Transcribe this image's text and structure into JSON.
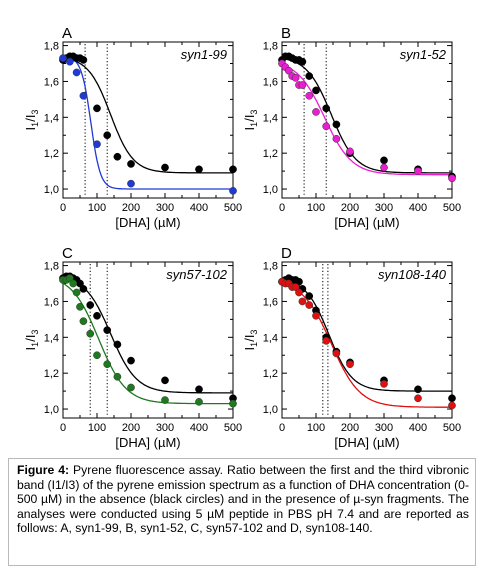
{
  "chart_data": [
    {
      "type": "scatter",
      "panel_letter": "A",
      "label": "syn1-99",
      "xlabel": "[DHA] (µM)",
      "ylabel_main": "I",
      "ylabel_sub1": "1",
      "ylabel_sub2": "3",
      "xlim": [
        0,
        500
      ],
      "ylim": [
        0.95,
        1.82
      ],
      "xticks": [
        "0",
        "100",
        "200",
        "300",
        "400",
        "500"
      ],
      "yticks": [
        "1,0",
        "1,2",
        "1,4",
        "1,6",
        "1,8"
      ],
      "vlines": [
        65,
        130
      ],
      "series": [
        {
          "color": "#000000",
          "x": [
            0,
            10,
            20,
            30,
            40,
            50,
            60,
            100,
            130,
            160,
            200,
            300,
            400,
            500
          ],
          "y": [
            1.72,
            1.73,
            1.74,
            1.74,
            1.73,
            1.73,
            1.72,
            1.45,
            1.3,
            1.18,
            1.14,
            1.12,
            1.11,
            1.11
          ],
          "fit": {
            "top": 1.74,
            "bottom": 1.09,
            "x0": 140,
            "slope": 33
          }
        },
        {
          "color": "#1f3ad6",
          "x": [
            0,
            20,
            40,
            60,
            100,
            200,
            500
          ],
          "y": [
            1.73,
            1.71,
            1.65,
            1.52,
            1.25,
            1.03,
            0.99
          ],
          "fit": {
            "top": 1.74,
            "bottom": 1.0,
            "x0": 82,
            "slope": 14
          }
        }
      ]
    },
    {
      "type": "scatter",
      "panel_letter": "B",
      "label": "syn1-52",
      "xlabel": "[DHA] (µM)",
      "ylabel_main": "I",
      "ylabel_sub1": "1",
      "ylabel_sub2": "3",
      "xlim": [
        0,
        500
      ],
      "ylim": [
        0.95,
        1.82
      ],
      "xticks": [
        "0",
        "100",
        "200",
        "300",
        "400",
        "500"
      ],
      "yticks": [
        "1,0",
        "1,2",
        "1,4",
        "1,6",
        "1,8"
      ],
      "vlines": [
        65,
        130
      ],
      "series": [
        {
          "color": "#000000",
          "x": [
            0,
            10,
            20,
            30,
            40,
            50,
            60,
            80,
            100,
            130,
            160,
            200,
            300,
            400,
            500
          ],
          "y": [
            1.72,
            1.74,
            1.74,
            1.73,
            1.72,
            1.72,
            1.71,
            1.63,
            1.55,
            1.45,
            1.36,
            1.2,
            1.16,
            1.11,
            1.07
          ],
          "fit": {
            "top": 1.74,
            "bottom": 1.09,
            "x0": 145,
            "slope": 36
          }
        },
        {
          "color": "#e81fd0",
          "x": [
            0,
            10,
            20,
            30,
            40,
            50,
            60,
            80,
            100,
            130,
            160,
            200,
            300,
            400,
            500
          ],
          "y": [
            1.7,
            1.68,
            1.66,
            1.63,
            1.62,
            1.58,
            1.58,
            1.52,
            1.43,
            1.35,
            1.28,
            1.21,
            1.12,
            1.1,
            1.06
          ],
          "fit": {
            "top": 1.72,
            "bottom": 1.08,
            "x0": 125,
            "slope": 40
          }
        }
      ]
    },
    {
      "type": "scatter",
      "panel_letter": "C",
      "label": "syn57-102",
      "xlabel": "[DHA] (µM)",
      "ylabel_main": "I",
      "ylabel_sub1": "1",
      "ylabel_sub2": "3",
      "xlim": [
        0,
        500
      ],
      "ylim": [
        0.95,
        1.82
      ],
      "xticks": [
        "0",
        "100",
        "200",
        "300",
        "400",
        "500"
      ],
      "yticks": [
        "1,0",
        "1,2",
        "1,4",
        "1,6",
        "1,8"
      ],
      "vlines": [
        80,
        130
      ],
      "series": [
        {
          "color": "#000000",
          "x": [
            0,
            10,
            20,
            30,
            40,
            50,
            60,
            80,
            100,
            130,
            160,
            200,
            300,
            400,
            500
          ],
          "y": [
            1.73,
            1.74,
            1.74,
            1.73,
            1.72,
            1.7,
            1.67,
            1.58,
            1.52,
            1.44,
            1.36,
            1.27,
            1.16,
            1.11,
            1.06
          ],
          "fit": {
            "top": 1.75,
            "bottom": 1.09,
            "x0": 140,
            "slope": 38
          }
        },
        {
          "color": "#1f7a1f",
          "x": [
            0,
            10,
            20,
            30,
            40,
            50,
            60,
            80,
            100,
            130,
            160,
            200,
            300,
            400,
            500
          ],
          "y": [
            1.72,
            1.72,
            1.73,
            1.7,
            1.65,
            1.57,
            1.49,
            1.42,
            1.3,
            1.25,
            1.18,
            1.12,
            1.05,
            1.04,
            1.03
          ],
          "fit": {
            "top": 1.75,
            "bottom": 1.03,
            "x0": 105,
            "slope": 40
          }
        }
      ]
    },
    {
      "type": "scatter",
      "panel_letter": "D",
      "label": "syn108-140",
      "xlabel": "[DHA] (µM)",
      "ylabel_main": "I",
      "ylabel_sub1": "1",
      "ylabel_sub2": "3",
      "xlim": [
        0,
        500
      ],
      "ylim": [
        0.95,
        1.82
      ],
      "xticks": [
        "0",
        "100",
        "200",
        "300",
        "400",
        "500"
      ],
      "yticks": [
        "1,0",
        "1,2",
        "1,4",
        "1,6",
        "1,8"
      ],
      "vlines": [
        120,
        135
      ],
      "series": [
        {
          "color": "#000000",
          "x": [
            0,
            10,
            20,
            30,
            40,
            50,
            60,
            80,
            100,
            130,
            160,
            200,
            300,
            400,
            500
          ],
          "y": [
            1.71,
            1.72,
            1.73,
            1.72,
            1.72,
            1.71,
            1.67,
            1.63,
            1.55,
            1.4,
            1.32,
            1.26,
            1.16,
            1.11,
            1.06
          ],
          "fit": {
            "top": 1.73,
            "bottom": 1.1,
            "x0": 138,
            "slope": 34
          }
        },
        {
          "color": "#e01010",
          "x": [
            0,
            10,
            20,
            30,
            40,
            50,
            60,
            80,
            100,
            130,
            160,
            200,
            300,
            400,
            500
          ],
          "y": [
            1.71,
            1.7,
            1.7,
            1.68,
            1.68,
            1.65,
            1.6,
            1.58,
            1.52,
            1.38,
            1.31,
            1.25,
            1.14,
            1.06,
            1.02
          ],
          "fit": {
            "top": 1.72,
            "bottom": 1.01,
            "x0": 145,
            "slope": 42
          }
        }
      ]
    }
  ],
  "caption": {
    "label": "Figure 4:",
    "text": " Pyrene fluorescence assay. Ratio between the first and the third vibronic band (I1/I3) of the pyrene emission spectrum as a function of DHA concentration (0-500 µM) in the absence (black circles) and in the presence of µ-syn fragments. The analyses were conducted using 5 µM peptide in PBS pH 7.4 and are reported as follows: A, syn1-99, B, syn1-52, C, syn57-102 and D, syn108-140."
  }
}
